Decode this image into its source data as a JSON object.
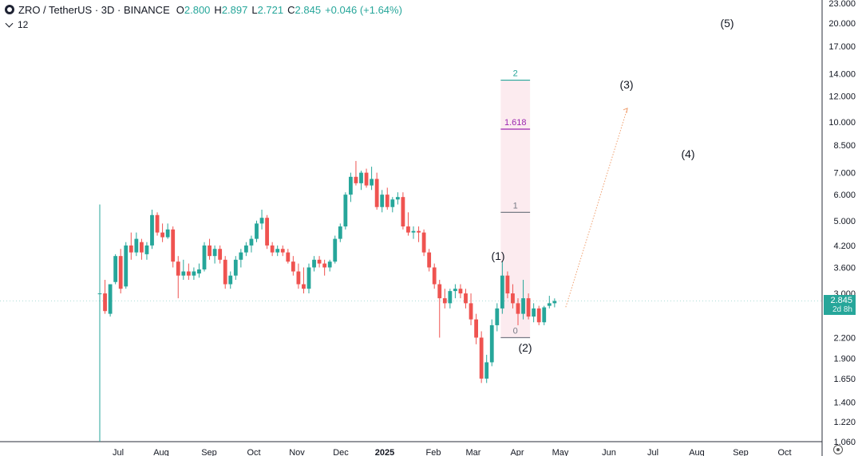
{
  "header": {
    "symbol": "ZRO / TetherUS · 3D · BINANCE",
    "open_label": "O",
    "open": "2.800",
    "high_label": "H",
    "high": "2.897",
    "low_label": "L",
    "low": "2.721",
    "close_label": "C",
    "close": "2.845",
    "change": "+0.046 (+1.64%)",
    "indicator_count": "12"
  },
  "price_badge": {
    "price": "2.845",
    "countdown": "2d 8h"
  },
  "colors": {
    "up": "#26a69a",
    "down": "#ef5350",
    "fib": "#f7c6d2",
    "fib_2": "#26a69a",
    "fib_1618": "#9c27b0",
    "fib_1": "#787b86",
    "projection": "#f0a070"
  },
  "icons": {
    "settings": "gear-icon",
    "logo": "zro-logo-icon",
    "collapse": "chevron-down-icon"
  },
  "chart_data": {
    "type": "candlestick",
    "title": "ZRO / TetherUS · 3D · BINANCE",
    "y_scale": "log",
    "ylim": [
      1.06,
      23.0
    ],
    "y_ticks": [
      "23.000",
      "20.000",
      "17.000",
      "14.000",
      "12.000",
      "10.000",
      "8.500",
      "7.000",
      "6.000",
      "5.000",
      "4.200",
      "3.600",
      "3.000",
      "2.845",
      "2.200",
      "1.900",
      "1.650",
      "1.400",
      "1.220",
      "1.060"
    ],
    "x_ticks": [
      "Jul",
      "Aug",
      "Sep",
      "Oct",
      "Nov",
      "Dec",
      "2025",
      "Feb",
      "Mar",
      "Apr",
      "May",
      "Jun",
      "Jul",
      "Aug",
      "Sep",
      "Oct"
    ],
    "grid": false,
    "candles": [
      {
        "o": 3.0,
        "h": 5.6,
        "l": 1.06,
        "c": 3.0
      },
      {
        "o": 3.0,
        "h": 3.3,
        "l": 2.6,
        "c": 2.65
      },
      {
        "o": 2.6,
        "h": 3.2,
        "l": 2.55,
        "c": 3.2
      },
      {
        "o": 3.25,
        "h": 3.95,
        "l": 3.2,
        "c": 3.9
      },
      {
        "o": 3.9,
        "h": 4.1,
        "l": 3.0,
        "c": 3.1
      },
      {
        "o": 3.15,
        "h": 4.3,
        "l": 3.1,
        "c": 4.2
      },
      {
        "o": 4.2,
        "h": 4.6,
        "l": 3.8,
        "c": 4.0
      },
      {
        "o": 4.0,
        "h": 4.6,
        "l": 3.9,
        "c": 4.4
      },
      {
        "o": 4.3,
        "h": 4.4,
        "l": 3.8,
        "c": 4.0
      },
      {
        "o": 3.95,
        "h": 4.3,
        "l": 3.8,
        "c": 4.2
      },
      {
        "o": 4.2,
        "h": 5.4,
        "l": 4.1,
        "c": 5.2
      },
      {
        "o": 5.2,
        "h": 5.3,
        "l": 4.5,
        "c": 4.6
      },
      {
        "o": 4.6,
        "h": 4.9,
        "l": 4.3,
        "c": 4.45
      },
      {
        "o": 4.45,
        "h": 4.9,
        "l": 4.4,
        "c": 4.7
      },
      {
        "o": 4.7,
        "h": 4.8,
        "l": 3.6,
        "c": 3.75
      },
      {
        "o": 3.75,
        "h": 3.9,
        "l": 2.9,
        "c": 3.4
      },
      {
        "o": 3.4,
        "h": 3.8,
        "l": 3.3,
        "c": 3.5
      },
      {
        "o": 3.5,
        "h": 3.7,
        "l": 3.3,
        "c": 3.4
      },
      {
        "o": 3.4,
        "h": 3.6,
        "l": 3.3,
        "c": 3.5
      },
      {
        "o": 3.45,
        "h": 3.7,
        "l": 3.35,
        "c": 3.55
      },
      {
        "o": 3.55,
        "h": 4.3,
        "l": 3.5,
        "c": 4.2
      },
      {
        "o": 4.2,
        "h": 4.4,
        "l": 3.8,
        "c": 3.9
      },
      {
        "o": 3.9,
        "h": 4.2,
        "l": 3.7,
        "c": 4.1
      },
      {
        "o": 4.1,
        "h": 4.2,
        "l": 3.7,
        "c": 3.8
      },
      {
        "o": 3.8,
        "h": 3.9,
        "l": 3.1,
        "c": 3.2
      },
      {
        "o": 3.2,
        "h": 3.5,
        "l": 3.1,
        "c": 3.4
      },
      {
        "o": 3.4,
        "h": 3.9,
        "l": 3.3,
        "c": 3.8
      },
      {
        "o": 3.8,
        "h": 4.1,
        "l": 3.6,
        "c": 4.0
      },
      {
        "o": 4.0,
        "h": 4.3,
        "l": 3.9,
        "c": 4.2
      },
      {
        "o": 4.2,
        "h": 4.5,
        "l": 4.0,
        "c": 4.4
      },
      {
        "o": 4.4,
        "h": 5.0,
        "l": 4.3,
        "c": 4.9
      },
      {
        "o": 4.9,
        "h": 5.4,
        "l": 4.7,
        "c": 5.1
      },
      {
        "o": 5.1,
        "h": 5.2,
        "l": 4.1,
        "c": 4.2
      },
      {
        "o": 4.2,
        "h": 4.3,
        "l": 3.9,
        "c": 4.0
      },
      {
        "o": 4.0,
        "h": 4.2,
        "l": 3.9,
        "c": 4.1
      },
      {
        "o": 4.1,
        "h": 4.2,
        "l": 3.9,
        "c": 4.0
      },
      {
        "o": 4.0,
        "h": 4.1,
        "l": 3.7,
        "c": 3.75
      },
      {
        "o": 3.75,
        "h": 3.9,
        "l": 3.4,
        "c": 3.5
      },
      {
        "o": 3.5,
        "h": 3.7,
        "l": 3.1,
        "c": 3.2
      },
      {
        "o": 3.2,
        "h": 3.6,
        "l": 3.0,
        "c": 3.1
      },
      {
        "o": 3.1,
        "h": 3.7,
        "l": 3.0,
        "c": 3.6
      },
      {
        "o": 3.6,
        "h": 3.9,
        "l": 3.5,
        "c": 3.8
      },
      {
        "o": 3.8,
        "h": 3.9,
        "l": 3.6,
        "c": 3.7
      },
      {
        "o": 3.7,
        "h": 3.8,
        "l": 3.4,
        "c": 3.6
      },
      {
        "o": 3.6,
        "h": 3.8,
        "l": 3.5,
        "c": 3.75
      },
      {
        "o": 3.75,
        "h": 4.5,
        "l": 3.7,
        "c": 4.4
      },
      {
        "o": 4.4,
        "h": 4.9,
        "l": 4.3,
        "c": 4.8
      },
      {
        "o": 4.8,
        "h": 6.1,
        "l": 4.7,
        "c": 6.0
      },
      {
        "o": 6.0,
        "h": 7.0,
        "l": 5.7,
        "c": 6.8
      },
      {
        "o": 6.8,
        "h": 7.6,
        "l": 6.4,
        "c": 6.5
      },
      {
        "o": 6.5,
        "h": 7.1,
        "l": 6.2,
        "c": 7.0
      },
      {
        "o": 7.0,
        "h": 7.2,
        "l": 6.3,
        "c": 6.4
      },
      {
        "o": 6.4,
        "h": 7.3,
        "l": 6.2,
        "c": 6.7
      },
      {
        "o": 6.7,
        "h": 7.0,
        "l": 5.4,
        "c": 5.5
      },
      {
        "o": 5.5,
        "h": 6.2,
        "l": 5.3,
        "c": 6.0
      },
      {
        "o": 6.0,
        "h": 6.3,
        "l": 5.4,
        "c": 5.5
      },
      {
        "o": 5.5,
        "h": 5.9,
        "l": 5.3,
        "c": 5.8
      },
      {
        "o": 5.8,
        "h": 6.1,
        "l": 5.6,
        "c": 5.9
      },
      {
        "o": 5.9,
        "h": 6.1,
        "l": 4.7,
        "c": 4.8
      },
      {
        "o": 4.8,
        "h": 5.3,
        "l": 4.5,
        "c": 4.6
      },
      {
        "o": 4.6,
        "h": 4.8,
        "l": 4.4,
        "c": 4.65
      },
      {
        "o": 4.65,
        "h": 4.8,
        "l": 4.3,
        "c": 4.6
      },
      {
        "o": 4.6,
        "h": 4.7,
        "l": 3.9,
        "c": 4.0
      },
      {
        "o": 4.0,
        "h": 4.1,
        "l": 3.5,
        "c": 3.6
      },
      {
        "o": 3.6,
        "h": 3.7,
        "l": 3.1,
        "c": 3.2
      },
      {
        "o": 3.2,
        "h": 3.3,
        "l": 2.2,
        "c": 2.9
      },
      {
        "o": 2.9,
        "h": 3.1,
        "l": 2.7,
        "c": 2.8
      },
      {
        "o": 2.8,
        "h": 3.1,
        "l": 2.7,
        "c": 3.05
      },
      {
        "o": 3.05,
        "h": 3.2,
        "l": 2.9,
        "c": 3.1
      },
      {
        "o": 3.1,
        "h": 3.2,
        "l": 2.9,
        "c": 3.0
      },
      {
        "o": 3.0,
        "h": 3.1,
        "l": 2.7,
        "c": 2.8
      },
      {
        "o": 2.8,
        "h": 3.0,
        "l": 2.4,
        "c": 2.5
      },
      {
        "o": 2.5,
        "h": 2.6,
        "l": 2.1,
        "c": 2.2
      },
      {
        "o": 2.2,
        "h": 2.3,
        "l": 1.6,
        "c": 1.65
      },
      {
        "o": 1.65,
        "h": 1.95,
        "l": 1.6,
        "c": 1.85
      },
      {
        "o": 1.85,
        "h": 2.5,
        "l": 1.8,
        "c": 2.4
      },
      {
        "o": 2.4,
        "h": 2.8,
        "l": 2.3,
        "c": 2.7
      },
      {
        "o": 2.7,
        "h": 3.75,
        "l": 2.6,
        "c": 3.4
      },
      {
        "o": 3.4,
        "h": 3.5,
        "l": 2.9,
        "c": 3.0
      },
      {
        "o": 3.0,
        "h": 3.2,
        "l": 2.7,
        "c": 2.8
      },
      {
        "o": 2.8,
        "h": 2.9,
        "l": 2.4,
        "c": 2.6
      },
      {
        "o": 2.6,
        "h": 3.3,
        "l": 2.5,
        "c": 2.9
      },
      {
        "o": 2.9,
        "h": 3.0,
        "l": 2.5,
        "c": 2.55
      },
      {
        "o": 2.55,
        "h": 2.8,
        "l": 2.45,
        "c": 2.7
      },
      {
        "o": 2.7,
        "h": 2.75,
        "l": 2.4,
        "c": 2.45
      },
      {
        "o": 2.45,
        "h": 2.75,
        "l": 2.4,
        "c": 2.72
      },
      {
        "o": 2.75,
        "h": 2.95,
        "l": 2.7,
        "c": 2.8
      },
      {
        "o": 2.8,
        "h": 2.897,
        "l": 2.721,
        "c": 2.845
      }
    ],
    "fib_levels": [
      {
        "label": "2",
        "value": 13.4
      },
      {
        "label": "1.618",
        "value": 9.5
      },
      {
        "label": "1",
        "value": 5.3
      },
      {
        "label": "0",
        "value": 2.2
      }
    ],
    "wave_labels": [
      {
        "label": "(1)",
        "value": 3.9
      },
      {
        "label": "(2)",
        "value": 2.05
      },
      {
        "label": "(3)",
        "value": 13.0
      },
      {
        "label": "(4)",
        "value": 8.0
      },
      {
        "label": "(5)",
        "value": 20.0
      }
    ],
    "projection": {
      "from": 2.85,
      "to": 11.0
    }
  }
}
